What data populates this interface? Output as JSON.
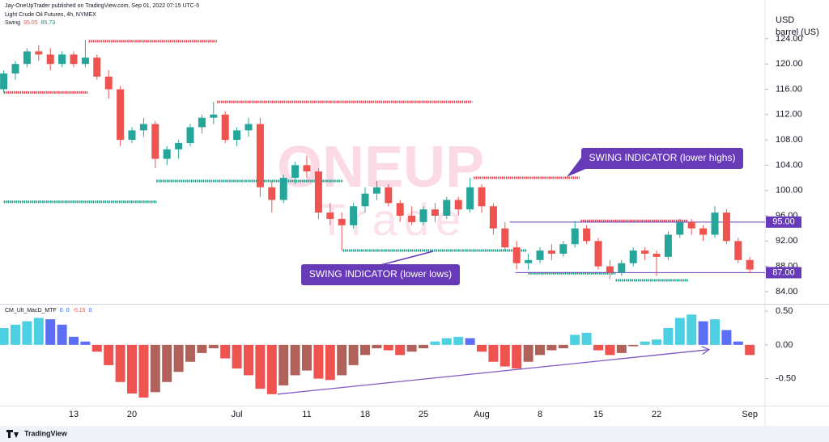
{
  "header": "Jay-OneUpTrader published on TradingView.com, Sep 01, 2022 07:15 UTC-5",
  "footer": "TradingView",
  "chart_data": [
    {
      "type": "candlestick",
      "title": "Light Crude Oil Futures, 4h, NYMEX",
      "indicator": "Swing",
      "indicator_values": [
        95.05,
        85.73
      ],
      "indicator_colors": [
        "#ef5350",
        "#089981"
      ],
      "axis_label": [
        "USD",
        "barrel (US)"
      ],
      "categories": [
        null,
        null,
        null,
        null,
        null,
        null,
        "13",
        null,
        null,
        null,
        null,
        "20",
        null,
        null,
        null,
        null,
        null,
        null,
        null,
        null,
        "Jul",
        null,
        null,
        null,
        null,
        null,
        "11",
        null,
        null,
        null,
        null,
        "18",
        null,
        null,
        null,
        null,
        "25",
        null,
        null,
        null,
        null,
        "Aug",
        null,
        null,
        null,
        null,
        "8",
        null,
        null,
        null,
        null,
        "15",
        null,
        null,
        null,
        null,
        "22",
        null,
        null,
        null,
        null,
        null,
        null,
        null,
        "Sep"
      ],
      "open": [
        116,
        118.5,
        120,
        122,
        121.5,
        120,
        121.5,
        120,
        121,
        118,
        116,
        108,
        109.5,
        110.5,
        105,
        106.5,
        107.5,
        110,
        111.5,
        112,
        108,
        109.5,
        110.5,
        100.5,
        98.5,
        102,
        104,
        103,
        96.5,
        95.5,
        94.5,
        97.5,
        99.5,
        100.5,
        98,
        96,
        95,
        97,
        96,
        98.5,
        97,
        100.5,
        97.5,
        94,
        91,
        88.5,
        89,
        90.5,
        90,
        91.5,
        94,
        92,
        88,
        87,
        88.5,
        90.5,
        90,
        89.5,
        93,
        95,
        94,
        93,
        96.5,
        92,
        89
      ],
      "high": [
        119,
        120.5,
        122.5,
        123,
        122.5,
        122,
        122,
        123.8,
        121.5,
        119,
        116.5,
        110,
        111.5,
        111,
        107,
        108,
        110.5,
        112,
        114,
        112.5,
        110,
        111.5,
        111.5,
        101.5,
        102.5,
        104.5,
        105.5,
        103.5,
        98,
        96.5,
        98,
        100.5,
        101.5,
        101,
        98.5,
        97.5,
        97.5,
        98,
        99,
        99,
        102,
        101,
        98,
        95,
        92,
        90,
        91,
        91.5,
        92,
        95.2,
        94.5,
        92.5,
        89,
        89,
        91,
        91,
        90.5,
        93.5,
        95.5,
        95.5,
        94.5,
        97.5,
        97,
        92.5,
        89.5
      ],
      "low": [
        115.5,
        117.5,
        119.5,
        120.5,
        119,
        119.5,
        119.5,
        119.5,
        117.5,
        114.5,
        107,
        107.5,
        108.5,
        103.5,
        104,
        105,
        107,
        109,
        110.5,
        107.5,
        107,
        108.5,
        99,
        96.5,
        98,
        101,
        102,
        95.5,
        94.5,
        90.5,
        94,
        96.5,
        98.5,
        97.5,
        95,
        94.5,
        94.5,
        95,
        95.5,
        96,
        96.5,
        96.5,
        93,
        90.5,
        87.5,
        87.5,
        88.5,
        89,
        89.5,
        91,
        91.5,
        87.5,
        86,
        86.5,
        88,
        89,
        86.5,
        89,
        92.5,
        93,
        92,
        92.5,
        91.5,
        88.5,
        87
      ],
      "close": [
        118.5,
        120,
        122,
        121.5,
        120,
        121.5,
        120,
        121,
        118,
        116,
        108,
        109.5,
        110.5,
        105,
        106.5,
        107.5,
        110,
        111.5,
        112,
        108,
        109.5,
        110.5,
        100.5,
        98.5,
        102,
        104,
        103,
        96.5,
        95.5,
        94.5,
        97.5,
        99.5,
        100.5,
        98,
        96,
        95,
        97,
        96,
        98.5,
        97,
        100.5,
        97.5,
        94,
        91,
        88.5,
        89,
        90.5,
        90,
        91.5,
        94,
        92,
        88,
        87,
        88.5,
        90.5,
        90,
        89.5,
        93,
        95,
        94,
        93,
        96.5,
        92,
        89,
        87.5
      ],
      "up_color": "#26a69a",
      "down_color": "#ef5350",
      "ylim": [
        82.2,
        128.2
      ],
      "yticks": [
        {
          "value": 84,
          "label": "84.00"
        },
        {
          "value": 88,
          "label": "88.00"
        },
        {
          "value": 92,
          "label": "92.00"
        },
        {
          "value": 96,
          "label": "96.00"
        },
        {
          "value": 100,
          "label": "100.00"
        },
        {
          "value": 104,
          "label": "104.00"
        },
        {
          "value": 108,
          "label": "108.00"
        },
        {
          "value": 112,
          "label": "112.00"
        },
        {
          "value": 116,
          "label": "116.00"
        },
        {
          "value": 120,
          "label": "120.00"
        },
        {
          "value": 124,
          "label": "124.00"
        }
      ],
      "grid": false,
      "resistance_color": "#f23645",
      "resistance": [
        {
          "value": 115.5,
          "x": [
            0,
            7.2
          ]
        },
        {
          "value": 123.6,
          "x": [
            7.3,
            18.3
          ]
        },
        {
          "value": 114,
          "x": [
            18.3,
            40.2
          ]
        },
        {
          "value": 102,
          "x": [
            40.3,
            49.4
          ]
        },
        {
          "value": 95.2,
          "x": [
            49.5,
            58.7
          ]
        }
      ],
      "support_color": "#089981",
      "support": [
        {
          "value": 98.2,
          "x": [
            0,
            13.1
          ]
        },
        {
          "value": 101.5,
          "x": [
            13.1,
            29.1
          ]
        },
        {
          "value": 90.5,
          "x": [
            29.1,
            44.9
          ]
        },
        {
          "value": 86.9,
          "x": [
            45,
            52.5
          ]
        },
        {
          "value": 85.8,
          "x": [
            52.5,
            58.7
          ]
        }
      ],
      "level_color": "#673ab7",
      "levels": [
        {
          "value": 95,
          "label": "95.00",
          "x_start": 43.4
        },
        {
          "value": 87,
          "label": "87.00",
          "x_start": 43.9
        }
      ],
      "annotations": [
        "SWING INDICATOR (lower highs)",
        "SWING INDICATOR (lower lows)"
      ],
      "watermark": [
        "ONEUP",
        "Trade"
      ]
    },
    {
      "type": "histogram",
      "title": "CM_Ult_MacD_MTF",
      "title_values": [
        0,
        0,
        -0.15,
        0
      ],
      "values": [
        0.25,
        0.3,
        0.35,
        0.4,
        0.38,
        0.3,
        0.12,
        0.05,
        -0.1,
        -0.3,
        -0.55,
        -0.72,
        -0.78,
        -0.7,
        -0.55,
        -0.4,
        -0.25,
        -0.12,
        -0.05,
        -0.2,
        -0.35,
        -0.45,
        -0.65,
        -0.73,
        -0.6,
        -0.45,
        -0.38,
        -0.5,
        -0.52,
        -0.45,
        -0.3,
        -0.15,
        -0.05,
        -0.08,
        -0.15,
        -0.1,
        -0.05,
        0.05,
        0.1,
        0.12,
        0.1,
        -0.1,
        -0.25,
        -0.32,
        -0.35,
        -0.25,
        -0.15,
        -0.08,
        -0.05,
        0.15,
        0.18,
        -0.08,
        -0.15,
        -0.12,
        -0.02,
        0.05,
        0.08,
        0.25,
        0.4,
        0.45,
        0.35,
        0.38,
        0.22,
        0.05,
        -0.15
      ],
      "colors": [
        "#4dd0e1",
        "#5b6ef5",
        "#ef5350",
        "#b0625a"
      ],
      "ylim": [
        -0.9,
        0.585
      ],
      "yticks": [
        {
          "value": 0.5,
          "label": "0.50"
        },
        {
          "value": 0,
          "label": "0.00"
        },
        {
          "value": -0.5,
          "label": "-0.50"
        }
      ],
      "trendline": {
        "color": "#7e57c2",
        "x": [
          23.5,
          60.5
        ],
        "values": [
          -0.73,
          -0.07
        ]
      }
    }
  ]
}
